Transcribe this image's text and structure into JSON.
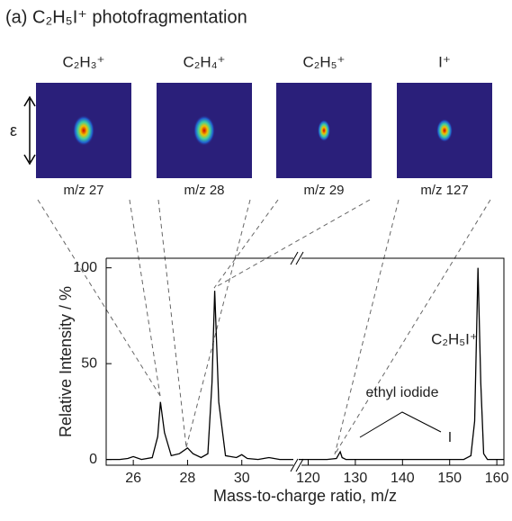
{
  "chart_data": {
    "type": "line",
    "title": "(a) C₂H₅I⁺ photofragmentation",
    "panels": [
      {
        "ion": "C₂H₃⁺",
        "label": "m/z 27"
      },
      {
        "ion": "C₂H₄⁺",
        "label": "m/z 28"
      },
      {
        "ion": "C₂H₅⁺",
        "label": "m/z 29"
      },
      {
        "ion": "I⁺",
        "label": "m/z 127"
      }
    ],
    "panel_axis_label": "ε",
    "x_label": "Mass-to-charge ratio, m/z",
    "y_label": "Relative Intensity / %",
    "annotations": [
      "C₂H₅I⁺",
      "ethyl iodide",
      "I"
    ],
    "ylim": [
      -3,
      105
    ],
    "yticks": [
      0,
      50,
      100
    ],
    "color": "#000000",
    "segments": [
      {
        "xlim": [
          25,
          31.9
        ],
        "xticks": [
          26,
          28,
          30
        ],
        "x": [
          25,
          25.5,
          25.8,
          26,
          26.3,
          26.7,
          26.9,
          27,
          27.15,
          27.4,
          27.7,
          28,
          28.2,
          28.5,
          28.75,
          28.9,
          29,
          29.15,
          29.4,
          29.8,
          30,
          30.2,
          30.6,
          31,
          31.4,
          31.9
        ],
        "values": [
          0,
          0,
          0.5,
          1.5,
          0,
          1,
          12,
          30,
          14,
          2,
          3,
          6,
          3,
          1,
          3,
          40,
          88,
          30,
          2,
          1,
          2.5,
          0.5,
          0,
          1,
          0,
          0
        ]
      },
      {
        "xlim": [
          118,
          161.5
        ],
        "xticks": [
          120,
          130,
          140,
          150,
          160
        ],
        "x": [
          118,
          124,
          126,
          126.8,
          127.2,
          128,
          135,
          145,
          153,
          154.5,
          155.3,
          156,
          156.6,
          157.2,
          158,
          161.5
        ],
        "values": [
          0,
          0,
          0.5,
          4,
          1,
          0,
          0,
          0,
          0,
          2,
          20,
          100,
          40,
          3,
          0,
          0
        ]
      }
    ]
  }
}
